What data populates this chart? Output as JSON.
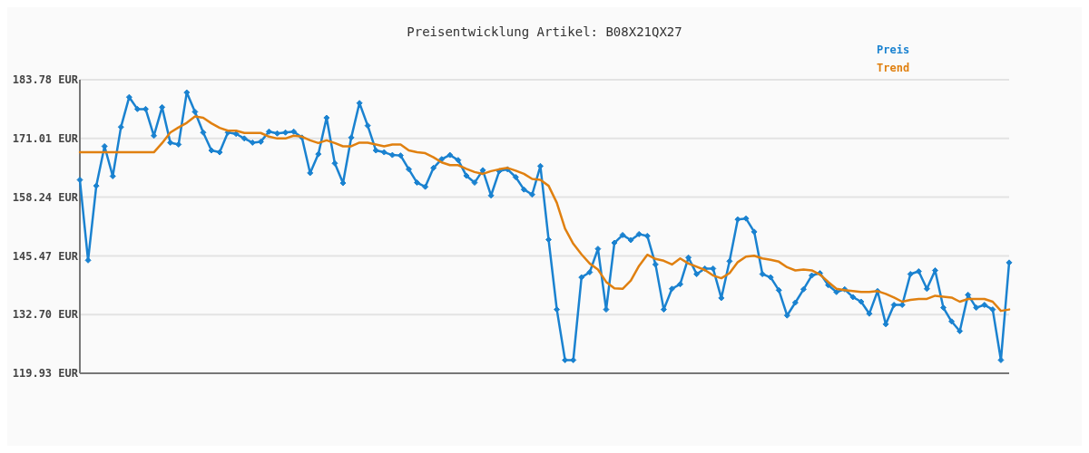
{
  "chart_data": {
    "type": "line",
    "title": "Preisentwicklung Artikel: B08X21QX27",
    "categories": [
      null,
      null,
      null,
      null,
      null,
      null,
      null,
      null,
      null,
      null,
      null,
      null,
      null,
      null,
      null,
      null,
      null,
      null,
      null,
      null,
      null,
      null,
      null,
      null,
      null,
      null,
      null,
      null,
      null,
      null,
      null,
      null,
      null,
      null,
      null,
      null,
      null,
      null,
      null,
      null,
      null,
      null,
      null,
      null,
      null,
      null,
      null,
      null,
      null,
      null,
      null,
      null,
      null,
      null,
      null,
      null,
      null,
      null,
      null,
      null,
      null,
      null,
      null,
      null,
      null,
      null,
      null,
      null,
      null,
      null,
      null,
      null,
      null,
      null,
      null,
      null,
      null,
      null,
      null,
      null,
      null,
      null,
      null,
      null,
      null,
      null,
      null,
      null,
      null,
      null,
      null,
      null,
      null,
      null,
      null,
      null,
      null,
      null,
      null,
      null,
      null,
      null,
      null,
      null,
      null,
      null,
      null,
      null,
      null,
      null,
      null,
      null,
      null,
      null
    ],
    "series": [
      {
        "name": "Preis",
        "color": "#1a82d0",
        "marker": "diamond",
        "values": [
          162.0,
          144.5,
          160.7,
          169.3,
          162.8,
          173.5,
          180.0,
          177.4,
          177.4,
          171.6,
          177.8,
          170.1,
          169.7,
          181.0,
          176.8,
          172.3,
          168.4,
          168.0,
          172.3,
          172.0,
          171.0,
          170.1,
          170.3,
          172.5,
          172.1,
          172.3,
          172.5,
          171.2,
          163.5,
          167.6,
          175.5,
          165.6,
          161.3,
          171.2,
          178.7,
          173.8,
          168.4,
          168.0,
          167.4,
          167.3,
          164.3,
          161.4,
          160.5,
          164.6,
          166.5,
          167.4,
          166.3,
          162.9,
          161.4,
          164.1,
          158.6,
          163.9,
          164.3,
          162.6,
          159.9,
          158.8,
          165.0,
          149.0,
          133.8,
          122.8,
          122.8,
          140.8,
          141.9,
          147.0,
          133.8,
          148.3,
          150.0,
          148.9,
          150.2,
          149.8,
          143.6,
          133.8,
          138.3,
          139.3,
          145.1,
          141.5,
          142.7,
          142.7,
          136.3,
          144.3,
          153.4,
          153.6,
          150.7,
          141.5,
          140.8,
          138.0,
          132.5,
          135.3,
          138.2,
          141.2,
          141.7,
          139.1,
          137.6,
          138.2,
          136.5,
          135.5,
          132.9,
          137.8,
          130.6,
          134.8,
          134.8,
          141.5,
          142.1,
          138.3,
          142.3,
          134.2,
          131.2,
          129.1,
          137.0,
          134.2,
          134.8,
          133.8,
          122.8,
          144.0
        ]
      },
      {
        "name": "Trend",
        "color": "#e08010",
        "values": [
          168.0,
          168.0,
          168.0,
          168.0,
          168.0,
          168.0,
          168.0,
          168.0,
          168.0,
          168.0,
          170.0,
          172.3,
          173.4,
          174.4,
          175.8,
          175.5,
          174.3,
          173.3,
          172.7,
          172.7,
          172.2,
          172.2,
          172.2,
          171.4,
          171.0,
          171.0,
          171.6,
          171.4,
          170.6,
          170.0,
          170.6,
          170.0,
          169.3,
          169.3,
          170.1,
          170.1,
          169.7,
          169.3,
          169.7,
          169.7,
          168.4,
          168.0,
          167.8,
          166.9,
          165.8,
          165.2,
          165.2,
          164.4,
          163.7,
          163.3,
          163.9,
          164.3,
          164.6,
          164.0,
          163.3,
          162.2,
          162.0,
          160.7,
          157.0,
          151.4,
          148.1,
          145.8,
          143.8,
          142.5,
          139.8,
          138.4,
          138.3,
          140.1,
          143.3,
          145.7,
          144.8,
          144.4,
          143.6,
          144.9,
          143.8,
          143.1,
          142.4,
          141.2,
          140.6,
          141.7,
          144.1,
          145.3,
          145.5,
          144.9,
          144.6,
          144.2,
          143.0,
          142.3,
          142.5,
          142.3,
          141.4,
          139.8,
          138.3,
          138.0,
          137.8,
          137.6,
          137.6,
          137.8,
          137.2,
          136.4,
          135.5,
          135.9,
          136.1,
          136.1,
          136.8,
          136.6,
          136.4,
          135.5,
          136.1,
          136.1,
          136.1,
          135.5,
          133.5,
          133.8
        ]
      }
    ],
    "ylim": [
      119.93,
      183.78
    ],
    "yticks": [
      {
        "value": 119.93,
        "label": "119.93 EUR"
      },
      {
        "value": 132.7,
        "label": "132.70 EUR"
      },
      {
        "value": 145.47,
        "label": "145.47 EUR"
      },
      {
        "value": 158.24,
        "label": "158.24 EUR"
      },
      {
        "value": 171.01,
        "label": "171.01 EUR"
      },
      {
        "value": 183.78,
        "label": "183.78 EUR"
      }
    ],
    "grid": "y",
    "legend": "top right",
    "line_style": "solid"
  }
}
